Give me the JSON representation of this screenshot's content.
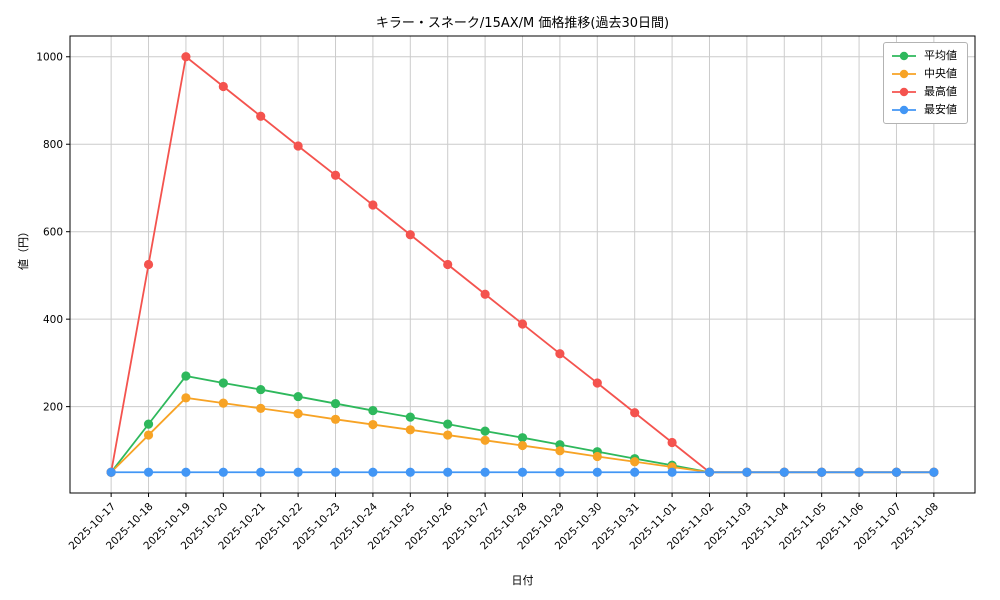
{
  "chart_data": {
    "type": "line",
    "title": "キラー・スネーク/15AX/M 価格推移(過去30日間)",
    "xlabel": "日付",
    "ylabel": "値（円）",
    "grid": true,
    "legend_position": "upper right",
    "ylim": [
      2.5,
      1047.5
    ],
    "yticks": [
      200,
      400,
      600,
      800,
      1000
    ],
    "x": [
      "2025-10-17",
      "2025-10-18",
      "2025-10-19",
      "2025-10-20",
      "2025-10-21",
      "2025-10-22",
      "2025-10-23",
      "2025-10-24",
      "2025-10-25",
      "2025-10-26",
      "2025-10-27",
      "2025-10-28",
      "2025-10-29",
      "2025-10-30",
      "2025-10-31",
      "2025-11-01",
      "2025-11-02",
      "2025-11-03",
      "2025-11-04",
      "2025-11-05",
      "2025-11-06",
      "2025-11-07",
      "2025-11-08"
    ],
    "series": [
      {
        "name": "平均値",
        "color": "#2eb85c",
        "values": [
          50,
          160,
          270,
          254,
          239,
          223,
          207,
          191,
          176,
          160,
          144,
          129,
          113,
          97,
          81,
          66,
          50,
          50,
          50,
          50,
          50,
          50,
          50
        ]
      },
      {
        "name": "中央値",
        "color": "#f7a325",
        "values": [
          50,
          135,
          220,
          208,
          196,
          184,
          171,
          159,
          147,
          135,
          123,
          111,
          99,
          86,
          74,
          62,
          50,
          50,
          50,
          50,
          50,
          50,
          50
        ]
      },
      {
        "name": "最高値",
        "color": "#f4534e",
        "values": [
          50,
          525,
          1000,
          932,
          864,
          796,
          729,
          661,
          593,
          525,
          457,
          389,
          321,
          254,
          186,
          118,
          50,
          50,
          50,
          50,
          50,
          50,
          50
        ]
      },
      {
        "name": "最安値",
        "color": "#4296f5",
        "values": [
          50,
          50,
          50,
          50,
          50,
          50,
          50,
          50,
          50,
          50,
          50,
          50,
          50,
          50,
          50,
          50,
          50,
          50,
          50,
          50,
          50,
          50,
          50
        ]
      }
    ]
  }
}
